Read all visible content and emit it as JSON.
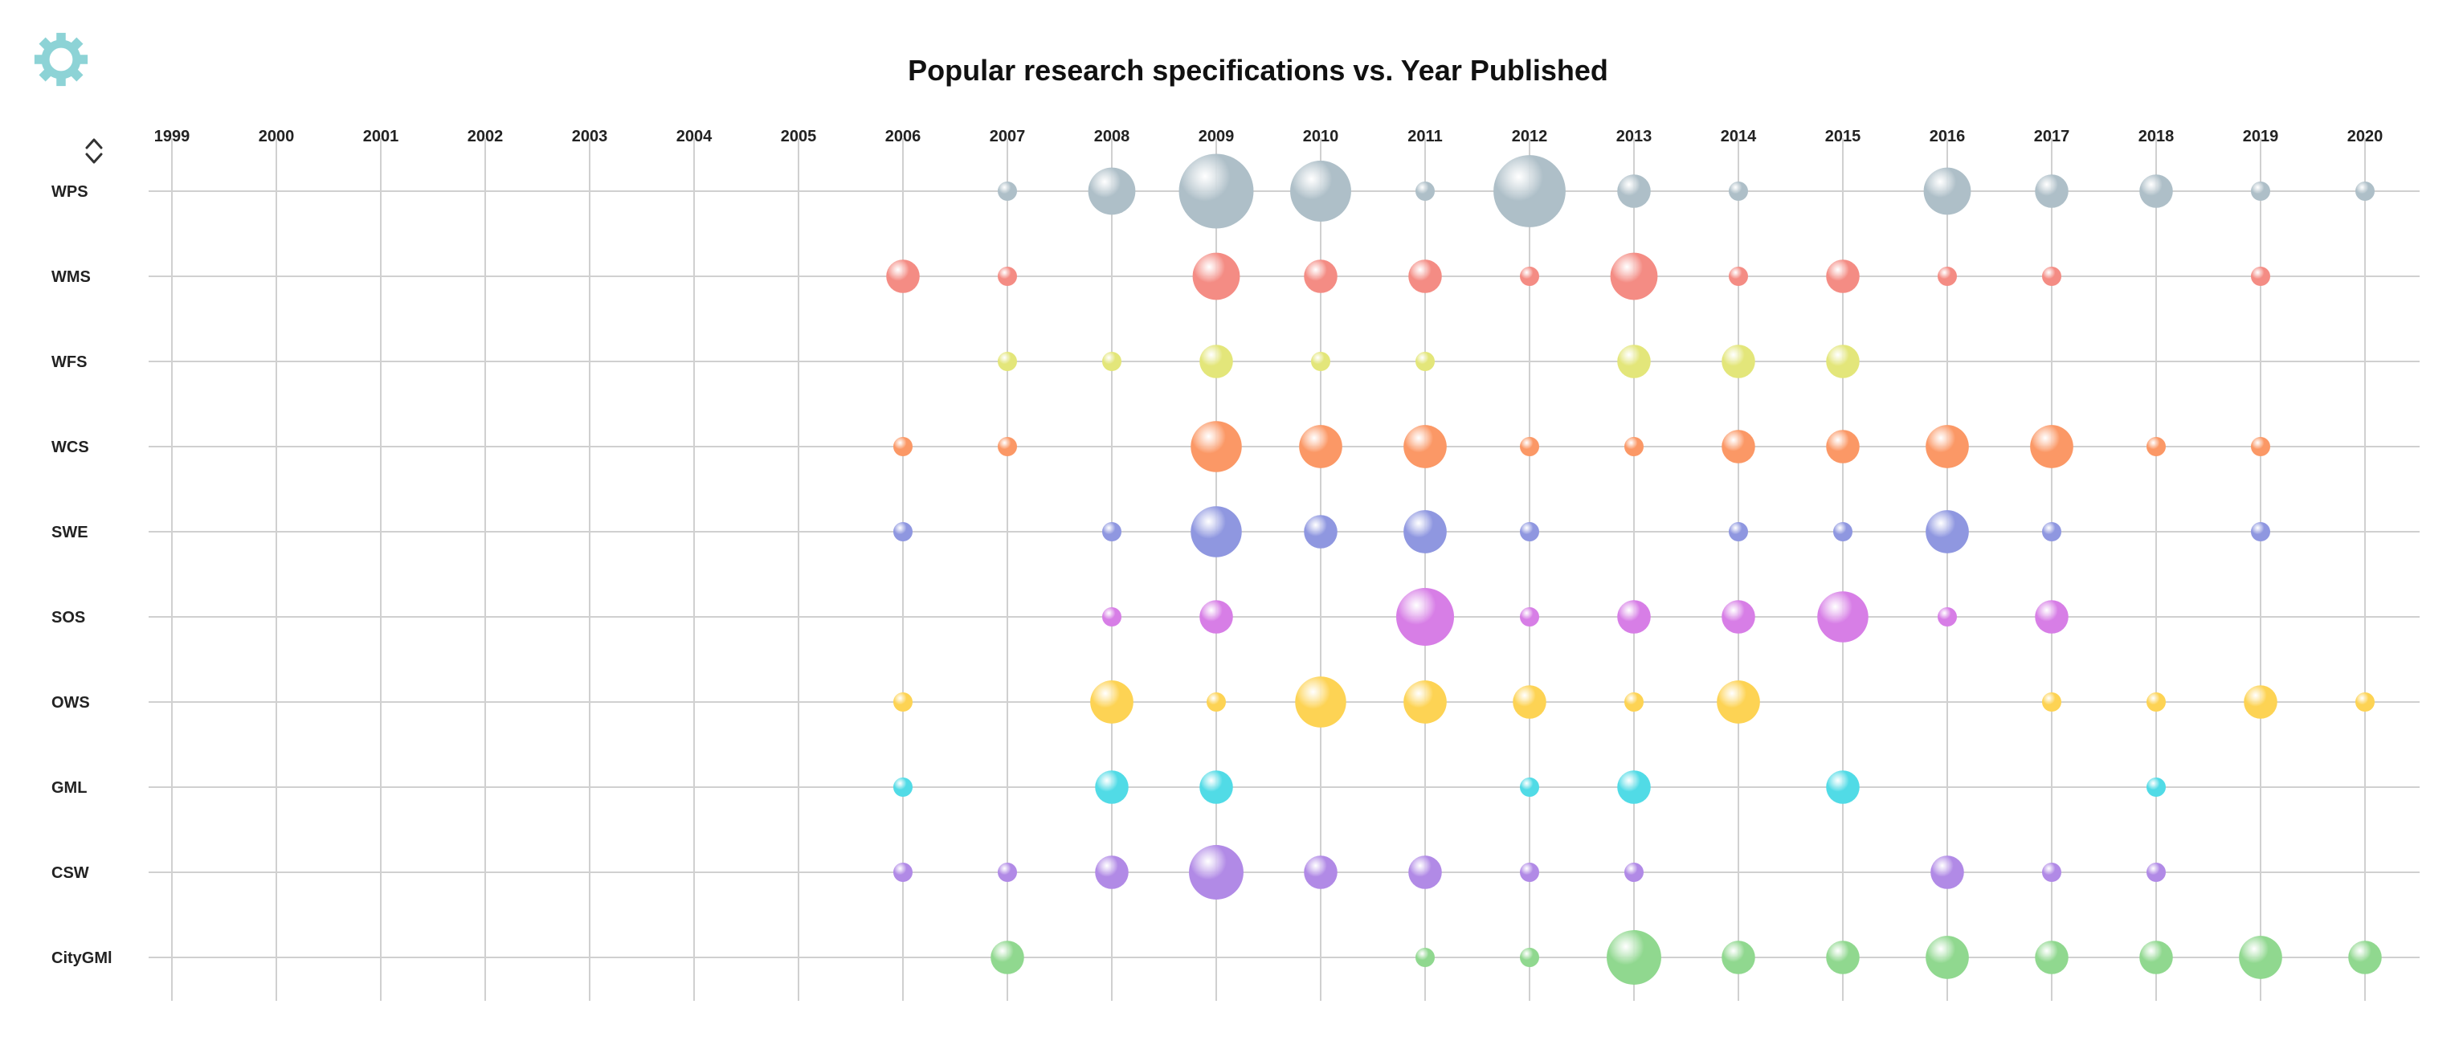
{
  "colors": {
    "settings_icon": "#8dd3d6",
    "grid": "#d0d0d0",
    "series": {
      "WPS": "#aebfc8",
      "WMS": "#f48c84",
      "WFS": "#e3e67a",
      "WCS": "#fb9866",
      "SWE": "#8f97e0",
      "SOS": "#d77ee6",
      "OWS": "#fdd354",
      "GML": "#51dbe6",
      "CSW": "#b18ae6",
      "CityGML": "#90d88f"
    }
  },
  "icons": {
    "settings": "gear-icon",
    "sort": "sort-toggle-icon"
  },
  "chart_data": {
    "type": "scatter",
    "subtype": "bubble-matrix",
    "title": "Popular research specifications  vs. Year Published",
    "xlabel": "",
    "ylabel": "",
    "x": [
      "1999",
      "2000",
      "2001",
      "2002",
      "2003",
      "2004",
      "2005",
      "2006",
      "2007",
      "2008",
      "2009",
      "2010",
      "2011",
      "2012",
      "2013",
      "2014",
      "2015",
      "2016",
      "2017",
      "2018",
      "2019",
      "2020"
    ],
    "grid": true,
    "size_unit": "relative",
    "series": [
      {
        "name": "WPS",
        "label": "WPS",
        "points": [
          [
            "2007",
            1
          ],
          [
            "2008",
            6
          ],
          [
            "2009",
            15
          ],
          [
            "2010",
            10
          ],
          [
            "2011",
            1
          ],
          [
            "2012",
            14
          ],
          [
            "2013",
            3
          ],
          [
            "2014",
            1
          ],
          [
            "2016",
            6
          ],
          [
            "2017",
            3
          ],
          [
            "2018",
            3
          ],
          [
            "2019",
            1
          ],
          [
            "2020",
            1
          ]
        ]
      },
      {
        "name": "WMS",
        "label": "WMS",
        "points": [
          [
            "2006",
            3
          ],
          [
            "2007",
            1
          ],
          [
            "2009",
            6
          ],
          [
            "2010",
            3
          ],
          [
            "2011",
            3
          ],
          [
            "2012",
            1
          ],
          [
            "2013",
            6
          ],
          [
            "2014",
            1
          ],
          [
            "2015",
            3
          ],
          [
            "2016",
            1
          ],
          [
            "2017",
            1
          ],
          [
            "2019",
            1
          ]
        ]
      },
      {
        "name": "WFS",
        "label": "WFS",
        "points": [
          [
            "2007",
            1
          ],
          [
            "2008",
            1
          ],
          [
            "2009",
            3
          ],
          [
            "2010",
            1
          ],
          [
            "2011",
            1
          ],
          [
            "2013",
            3
          ],
          [
            "2014",
            3
          ],
          [
            "2015",
            3
          ]
        ]
      },
      {
        "name": "WCS",
        "label": "WCS",
        "points": [
          [
            "2006",
            1
          ],
          [
            "2007",
            1
          ],
          [
            "2009",
            7
          ],
          [
            "2010",
            5
          ],
          [
            "2011",
            5
          ],
          [
            "2012",
            1
          ],
          [
            "2013",
            1
          ],
          [
            "2014",
            3
          ],
          [
            "2015",
            3
          ],
          [
            "2016",
            5
          ],
          [
            "2017",
            5
          ],
          [
            "2018",
            1
          ],
          [
            "2019",
            1
          ]
        ]
      },
      {
        "name": "SWE",
        "label": "SWE",
        "points": [
          [
            "2006",
            1
          ],
          [
            "2008",
            1
          ],
          [
            "2009",
            7
          ],
          [
            "2010",
            3
          ],
          [
            "2011",
            5
          ],
          [
            "2012",
            1
          ],
          [
            "2014",
            1
          ],
          [
            "2015",
            1
          ],
          [
            "2016",
            5
          ],
          [
            "2017",
            1
          ],
          [
            "2019",
            1
          ]
        ]
      },
      {
        "name": "SOS",
        "label": "SOS",
        "points": [
          [
            "2008",
            1
          ],
          [
            "2009",
            3
          ],
          [
            "2011",
            9
          ],
          [
            "2012",
            1
          ],
          [
            "2013",
            3
          ],
          [
            "2014",
            3
          ],
          [
            "2015",
            7
          ],
          [
            "2016",
            1
          ],
          [
            "2017",
            3
          ]
        ]
      },
      {
        "name": "OWS",
        "label": "OWS",
        "points": [
          [
            "2006",
            1
          ],
          [
            "2008",
            5
          ],
          [
            "2009",
            1
          ],
          [
            "2010",
            7
          ],
          [
            "2011",
            5
          ],
          [
            "2012",
            3
          ],
          [
            "2013",
            1
          ],
          [
            "2014",
            5
          ],
          [
            "2017",
            1
          ],
          [
            "2018",
            1
          ],
          [
            "2019",
            3
          ],
          [
            "2020",
            1
          ]
        ]
      },
      {
        "name": "GML",
        "label": "GML",
        "points": [
          [
            "2006",
            1
          ],
          [
            "2008",
            3
          ],
          [
            "2009",
            3
          ],
          [
            "2012",
            1
          ],
          [
            "2013",
            3
          ],
          [
            "2015",
            3
          ],
          [
            "2018",
            1
          ]
        ]
      },
      {
        "name": "CSW",
        "label": "CSW",
        "points": [
          [
            "2006",
            1
          ],
          [
            "2007",
            1
          ],
          [
            "2008",
            3
          ],
          [
            "2009",
            8
          ],
          [
            "2010",
            3
          ],
          [
            "2011",
            3
          ],
          [
            "2012",
            1
          ],
          [
            "2013",
            1
          ],
          [
            "2016",
            3
          ],
          [
            "2017",
            1
          ],
          [
            "2018",
            1
          ]
        ]
      },
      {
        "name": "CityGML",
        "label": "CityGMl",
        "points": [
          [
            "2007",
            3
          ],
          [
            "2011",
            1
          ],
          [
            "2012",
            1
          ],
          [
            "2013",
            8
          ],
          [
            "2014",
            3
          ],
          [
            "2015",
            3
          ],
          [
            "2016",
            5
          ],
          [
            "2017",
            3
          ],
          [
            "2018",
            3
          ],
          [
            "2019",
            5
          ],
          [
            "2020",
            3
          ]
        ]
      }
    ]
  }
}
